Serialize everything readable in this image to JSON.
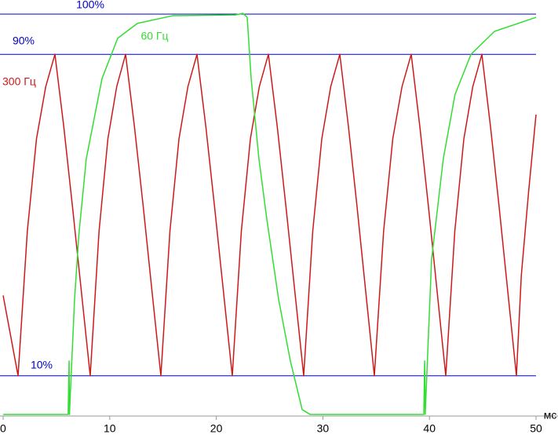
{
  "chart_data": {
    "type": "line",
    "x_label": "мс",
    "xlim": [
      0,
      50
    ],
    "xticks": [
      0,
      10,
      20,
      30,
      40,
      50
    ],
    "ylim": [
      0,
      100
    ],
    "reference_lines": [
      {
        "value": 100,
        "label": "100%"
      },
      {
        "value": 90,
        "label": "90%"
      },
      {
        "value": 10,
        "label": "10%"
      }
    ],
    "reference_color": "#0000c8",
    "series": [
      {
        "name": "300 Гц",
        "color": "#cc1a1a",
        "x": [
          0,
          1.4,
          2.27,
          3.13,
          4.0,
          4.86,
          5.69,
          6.51,
          7.34,
          8.17,
          9.0,
          9.83,
          10.66,
          11.49,
          12.32,
          13.15,
          13.97,
          14.8,
          15.65,
          16.5,
          17.34,
          18.19,
          19.02,
          19.84,
          20.67,
          21.5,
          22.35,
          23.2,
          24.04,
          24.89,
          25.72,
          26.54,
          27.37,
          28.2,
          29.05,
          29.9,
          30.74,
          31.59,
          32.4,
          33.21,
          34.02,
          34.83,
          35.7,
          36.56,
          37.43,
          38.29,
          39.1,
          39.91,
          40.72,
          41.53,
          42.38,
          43.23,
          44.07,
          44.92,
          45.73,
          46.54,
          47.35,
          48.16,
          48.62,
          49.31,
          50
        ],
        "values": [
          30,
          10,
          46,
          69,
          82,
          90,
          72,
          52,
          31,
          10,
          46,
          69,
          82,
          90,
          72,
          52,
          31,
          10,
          46,
          69,
          82,
          90,
          72,
          52,
          31,
          10,
          46,
          69,
          82,
          90,
          72,
          52,
          31,
          10,
          46,
          69,
          82,
          90,
          72,
          52,
          31,
          10,
          46,
          69,
          82,
          90,
          72,
          52,
          31,
          10,
          46,
          69,
          82,
          90,
          72,
          52,
          31,
          10,
          35,
          56,
          75
        ]
      },
      {
        "name": "60 Гц",
        "color": "#33dd33",
        "x": [
          0,
          6.1,
          6.19,
          6.22,
          6.7,
          7.1,
          7.8,
          9.28,
          10.75,
          12.6,
          15.9,
          21.8,
          22.5,
          22.9,
          23.27,
          24.0,
          24.74,
          25.85,
          26.95,
          28.06,
          28.8,
          39.47,
          39.55,
          39.6,
          40.2,
          41.3,
          42.4,
          43.9,
          46.1,
          50
        ],
        "values": [
          0.4,
          0.4,
          13.7,
          0.4,
          29,
          45,
          64,
          84,
          94,
          97.7,
          99.6,
          99.8,
          100.2,
          99.2,
          84,
          64,
          49,
          29,
          13.7,
          1.6,
          0.4,
          0.4,
          13.7,
          0.4,
          39,
          64,
          80,
          90,
          95.7,
          99.2
        ]
      }
    ]
  }
}
